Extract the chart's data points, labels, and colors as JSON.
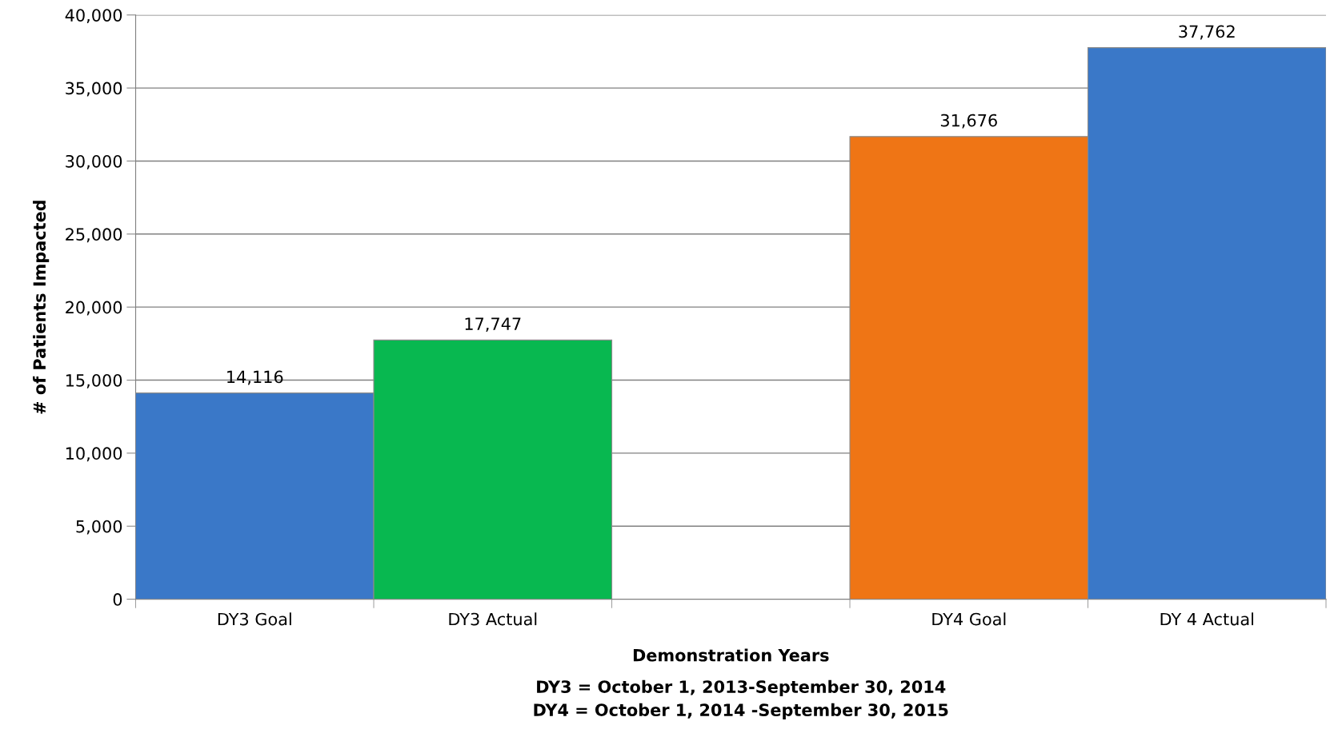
{
  "chart_data": {
    "type": "bar",
    "ylabel": "# of Patients Impacted",
    "xlabel": "Demonstration Years",
    "annotations": [
      "DY3 = October 1, 2013-September 30, 2014",
      "DY4 = October 1, 2014 -September 30, 2015"
    ],
    "categories": [
      "DY3 Goal",
      "DY3 Actual",
      null,
      "DY4 Goal",
      "DY 4 Actual"
    ],
    "values": [
      14116,
      17747,
      null,
      31676,
      37762
    ],
    "colors": [
      "#3a78c8",
      "#08b850",
      null,
      "#ef7515",
      "#3a78c8"
    ],
    "value_labels": [
      "14,116",
      "17,747",
      null,
      "31,676",
      "37,762"
    ],
    "ylim": [
      0,
      40000
    ],
    "yticks": [
      {
        "value": 0,
        "label": "0"
      },
      {
        "value": 5000,
        "label": "5,000"
      },
      {
        "value": 10000,
        "label": "10,000"
      },
      {
        "value": 15000,
        "label": "15,000"
      },
      {
        "value": 20000,
        "label": "20,000"
      },
      {
        "value": 25000,
        "label": "25,000"
      },
      {
        "value": 30000,
        "label": "30,000"
      },
      {
        "value": 35000,
        "label": "35,000"
      },
      {
        "value": 40000,
        "label": "40,000"
      }
    ],
    "grid": "y"
  }
}
